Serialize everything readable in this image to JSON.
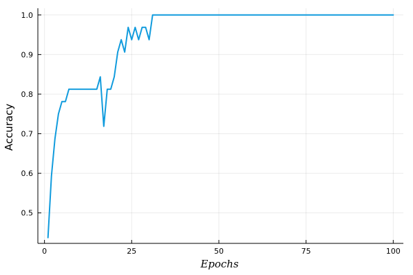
{
  "chart_data": {
    "type": "line",
    "xlabel": "Epochs",
    "ylabel": "Accuracy",
    "xlim": [
      -1.9,
      102.9
    ],
    "ylim": [
      0.423,
      1.017
    ],
    "xticks": [
      0,
      25,
      50,
      75,
      100
    ],
    "xtick_labels": [
      "0",
      "25",
      "50",
      "75",
      "100"
    ],
    "yticks": [
      0.5,
      0.6,
      0.7,
      0.8,
      0.9,
      1.0
    ],
    "ytick_labels": [
      "0.5",
      "0.6",
      "0.7",
      "0.8",
      "0.9",
      "1.0"
    ],
    "grid": true,
    "legend": "none",
    "series": [
      {
        "color": "#109bdd",
        "x": [
          1,
          2,
          3,
          4,
          5,
          6,
          7,
          8,
          9,
          10,
          11,
          12,
          13,
          14,
          15,
          16,
          17,
          18,
          19,
          20,
          21,
          22,
          23,
          24,
          25,
          26,
          27,
          28,
          29,
          30,
          31,
          32,
          100
        ],
        "y": [
          0.4375,
          0.59375,
          0.6875,
          0.75,
          0.78125,
          0.78125,
          0.8125,
          0.8125,
          0.8125,
          0.8125,
          0.8125,
          0.8125,
          0.8125,
          0.8125,
          0.8125,
          0.84375,
          0.71875,
          0.8125,
          0.8125,
          0.84375,
          0.90625,
          0.9375,
          0.90625,
          0.96875,
          0.9375,
          0.96875,
          0.9375,
          0.96875,
          0.96875,
          0.9375,
          1.0,
          1.0,
          1.0
        ]
      }
    ]
  }
}
